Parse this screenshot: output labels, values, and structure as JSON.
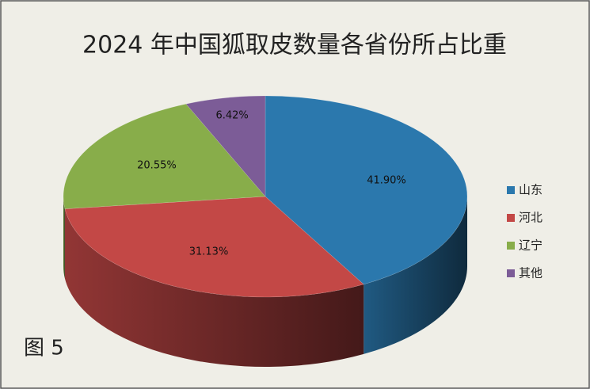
{
  "chart_data": {
    "type": "pie3d",
    "title": "2024 年中国狐取皮数量各省份所占比重",
    "caption": "图 5",
    "categories": [
      "山东",
      "河北",
      "辽宁",
      "其他"
    ],
    "values": [
      41.9,
      31.13,
      20.55,
      6.42
    ],
    "value_labels": [
      "41.90%",
      "31.13%",
      "20.55%",
      "6.42%"
    ],
    "colors": [
      "#2b78ad",
      "#c34846",
      "#88ad4a",
      "#7c5c97"
    ],
    "legend": "right"
  }
}
